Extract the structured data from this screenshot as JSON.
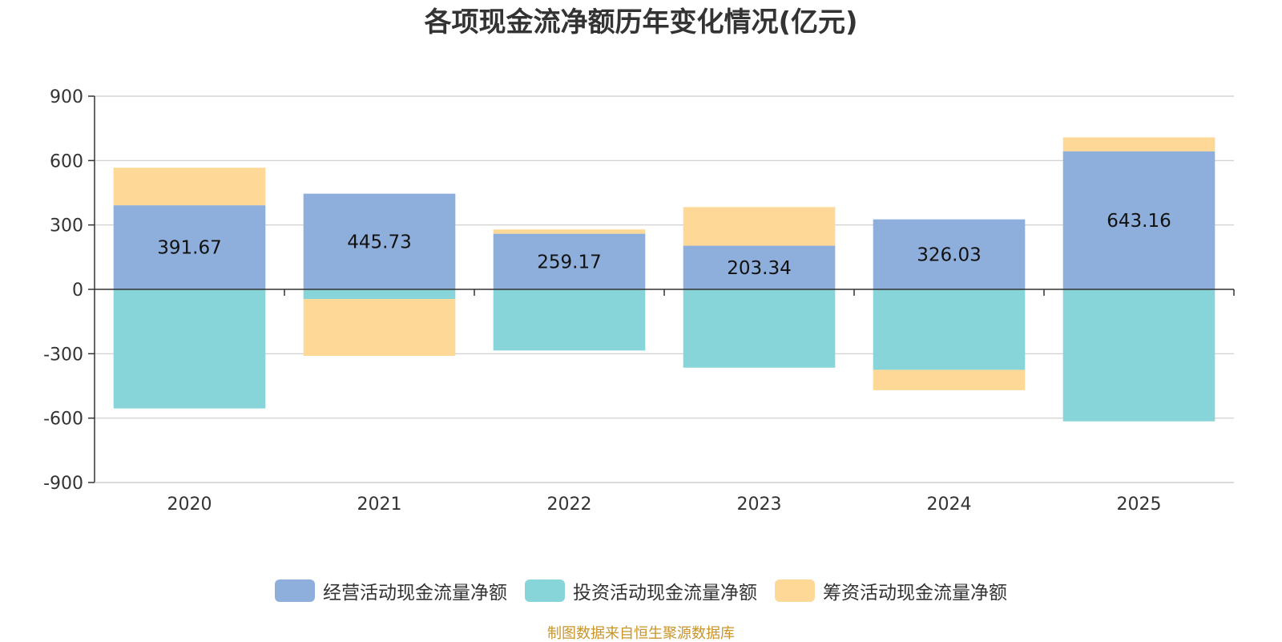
{
  "chart_data": {
    "type": "bar",
    "stacked": true,
    "title": "各项现金流净额历年变化情况(亿元)",
    "categories": [
      "2020",
      "2021",
      "2022",
      "2023",
      "2024",
      "2025"
    ],
    "ylim": [
      -900,
      900
    ],
    "yticks": [
      "900",
      "600",
      "300",
      "0",
      "-300",
      "-600",
      "-900"
    ],
    "ytick_values": [
      900,
      600,
      300,
      0,
      -300,
      -600,
      -900
    ],
    "grid": true,
    "legend_position": "bottom",
    "series": [
      {
        "name": "经营活动现金流量净额",
        "color": "#8eaedb",
        "values": [
          391.67,
          445.73,
          259.17,
          203.34,
          326.03,
          643.16
        ],
        "labels": [
          "391.67",
          "445.73",
          "259.17",
          "203.34",
          "326.03",
          "643.16"
        ]
      },
      {
        "name": "投资活动现金流量净额",
        "color": "#87d5d8",
        "values": [
          -555,
          -45,
          -285,
          -365,
          -375,
          -615
        ]
      },
      {
        "name": "筹资活动现金流量净额",
        "color": "#fed897",
        "values": [
          175,
          -265,
          20,
          180,
          -95,
          65
        ]
      }
    ]
  },
  "source": "制图数据来自恒生聚源数据库"
}
